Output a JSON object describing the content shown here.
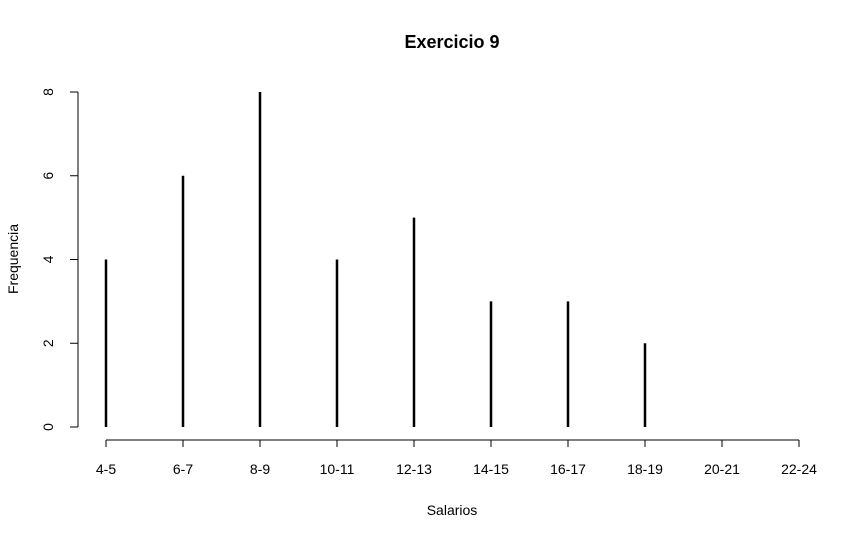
{
  "chart_data": {
    "type": "bar",
    "title": "Exercicio 9",
    "xlabel": "Salarios",
    "ylabel": "Frequencia",
    "categories": [
      "4-5",
      "6-7",
      "8-9",
      "10-11",
      "12-13",
      "14-15",
      "16-17",
      "18-19",
      "20-21",
      "22-24"
    ],
    "values": [
      4,
      6,
      8,
      4,
      5,
      3,
      3,
      2,
      0,
      0
    ],
    "yticks": [
      "0",
      "2",
      "4",
      "6",
      "8"
    ],
    "ylim": [
      0,
      8
    ],
    "grid": false,
    "legend": "none",
    "bar_color": "#000000"
  }
}
